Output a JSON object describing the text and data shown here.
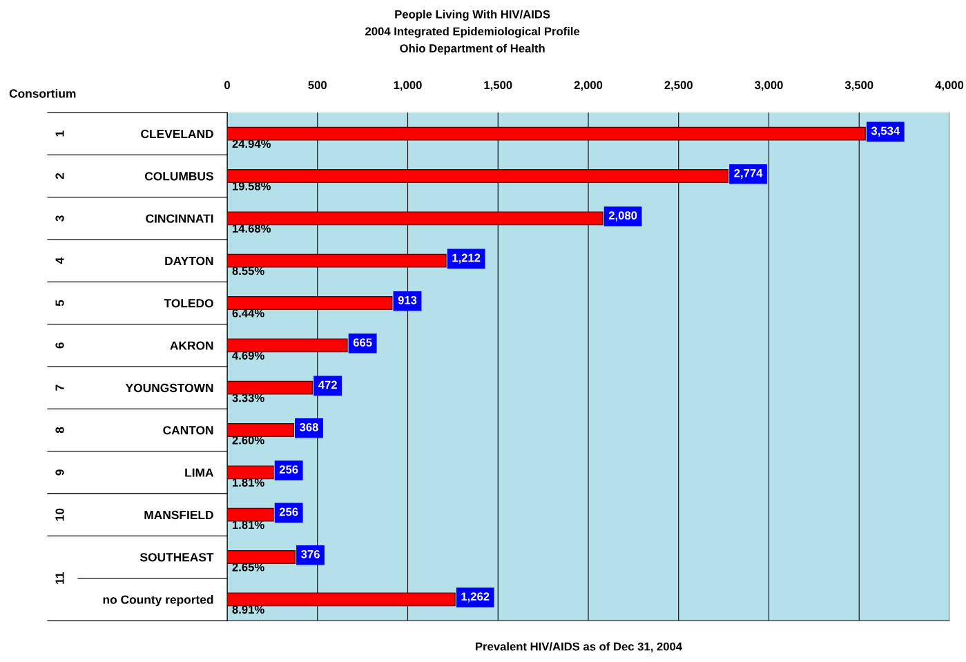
{
  "chart_data": {
    "type": "bar",
    "orientation": "horizontal",
    "title": "People Living With HIV/AIDS\n2004 Integrated Epidemiological Profile\nOhio Department of Health",
    "ylabel": "Consortium",
    "xlabel": "Prevalent HIV/AIDS as of Dec 31, 2004",
    "categories": [
      "CLEVELAND",
      "COLUMBUS",
      "CINCINNATI",
      "DAYTON",
      "TOLEDO",
      "AKRON",
      "YOUNGSTOWN",
      "CANTON",
      "LIMA",
      "MANSFIELD",
      "SOUTHEAST",
      "no County reported"
    ],
    "values": [
      3534,
      2774,
      2080,
      1212,
      913,
      665,
      472,
      368,
      256,
      256,
      376,
      1262
    ],
    "value_labels": [
      "3,534",
      "2,774",
      "2,080",
      "1,212",
      "913",
      "665",
      "472",
      "368",
      "256",
      "256",
      "376",
      "1,262"
    ],
    "color": "#ff0000",
    "xlim": [
      0,
      4000
    ],
    "xticks": [
      0,
      {
        "value": 500,
        "label": "500"
      },
      {
        "value": 1000,
        "label": "1,000"
      },
      {
        "value": 1500,
        "label": "1,500"
      },
      {
        "value": 2000,
        "label": "2,000"
      },
      {
        "value": 2500,
        "label": "2,500"
      },
      {
        "value": 3000,
        "label": "3,000"
      },
      {
        "value": 3500,
        "label": "3,500"
      },
      {
        "value": 4000,
        "label": "4,000"
      }
    ],
    "grid": "x",
    "annotations": [
      "24.94%",
      "19.58%",
      "14.68%",
      "8.55%",
      "6.44%",
      "4.69%",
      "3.33%",
      "2.60%",
      "1.81%",
      "1.81%",
      "2.65%",
      "8.91%",
      "1",
      "2",
      "3",
      "4",
      "5",
      "6",
      "7",
      "8",
      "9",
      "10",
      "11"
    ]
  }
}
